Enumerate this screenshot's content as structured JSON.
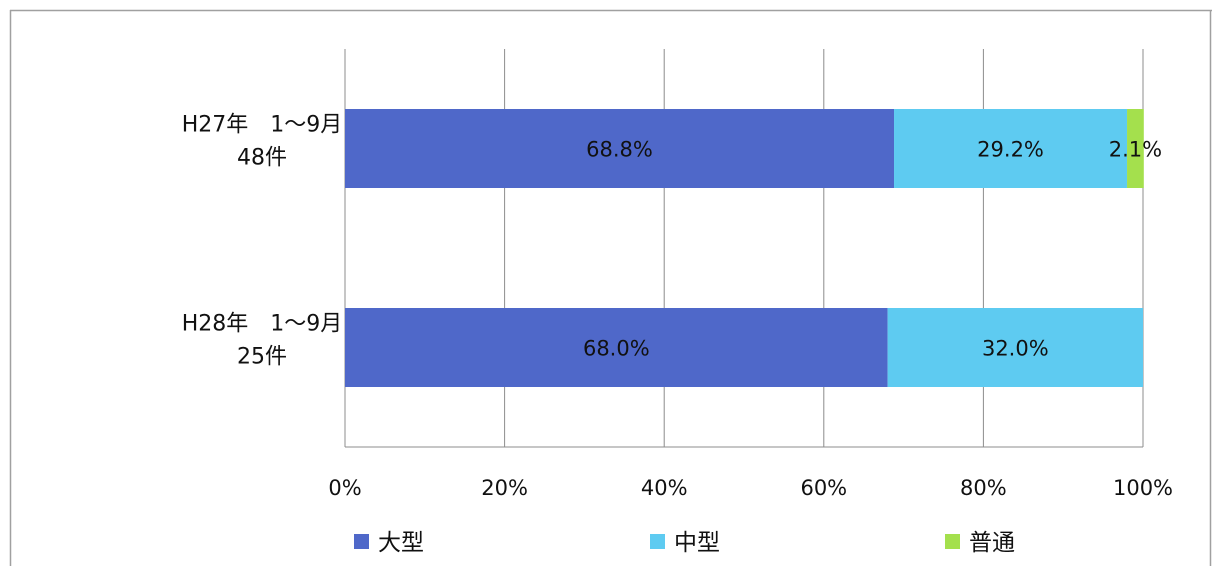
{
  "chart_data": {
    "type": "bar",
    "orientation": "horizontal",
    "stacked": "percent",
    "categories": [
      [
        "H27年　1～9月",
        "48件"
      ],
      [
        "H28年　1～9月",
        "25件"
      ]
    ],
    "series": [
      {
        "name": "大型",
        "color": "#4f68c9",
        "values": [
          68.8,
          68.0
        ],
        "labels": [
          "68.8%",
          "68.0%"
        ]
      },
      {
        "name": "中型",
        "color": "#5ecbf1",
        "values": [
          29.2,
          32.0
        ],
        "labels": [
          "29.2%",
          "32.0%"
        ]
      },
      {
        "name": "普通",
        "color": "#a4e04d",
        "values": [
          2.1,
          0
        ],
        "labels": [
          "2.1%",
          ""
        ]
      }
    ],
    "xlim": [
      0,
      100
    ],
    "xticks": [
      "0%",
      "20%",
      "40%",
      "60%",
      "80%",
      "100%"
    ],
    "grid": true,
    "legend_position": "bottom"
  }
}
